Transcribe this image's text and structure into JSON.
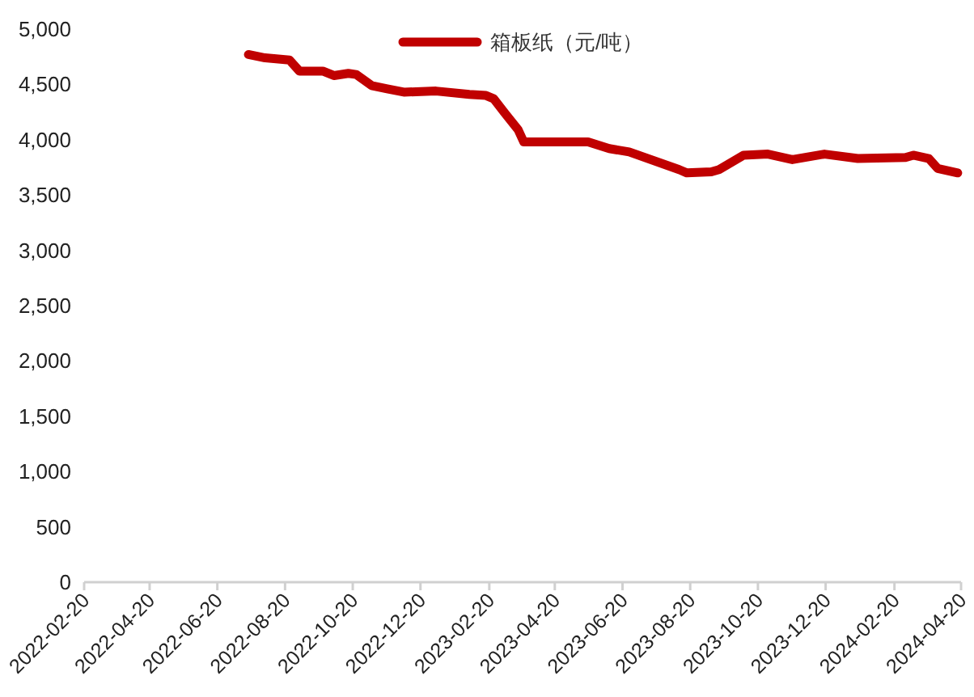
{
  "chart_data": {
    "type": "line",
    "legend": "top",
    "x": [
      "2022-07-18",
      "2022-08-02",
      "2022-08-24",
      "2022-09-02",
      "2022-09-23",
      "2022-10-03",
      "2022-10-16",
      "2022-10-23",
      "2022-11-06",
      "2022-11-20",
      "2022-12-05",
      "2023-01-03",
      "2023-02-02",
      "2023-02-17",
      "2023-02-24",
      "2023-03-06",
      "2023-03-18",
      "2023-03-23",
      "2023-04-14",
      "2023-05-20",
      "2023-06-08",
      "2023-06-26",
      "2023-08-10",
      "2023-08-17",
      "2023-09-08",
      "2023-09-15",
      "2023-10-07",
      "2023-10-29",
      "2023-11-20",
      "2023-12-19",
      "2024-01-18",
      "2024-03-01",
      "2024-03-08",
      "2024-03-22",
      "2024-03-30",
      "2024-04-17"
    ],
    "series": [
      {
        "name": "箱板纸（元/吨）",
        "color": "#c00000",
        "values": [
          4770,
          4740,
          4720,
          4620,
          4620,
          4580,
          4600,
          4590,
          4490,
          4460,
          4430,
          4440,
          4410,
          4400,
          4370,
          4240,
          4090,
          3980,
          3980,
          3980,
          3920,
          3890,
          3730,
          3700,
          3710,
          3730,
          3860,
          3870,
          3820,
          3870,
          3830,
          3840,
          3860,
          3830,
          3740,
          3700
        ]
      }
    ],
    "xlim": [
      "2022-02-20",
      "2024-04-20"
    ],
    "xticks": [
      "2022-02-20",
      "2022-04-20",
      "2022-06-20",
      "2022-08-20",
      "2022-10-20",
      "2022-12-20",
      "2023-02-20",
      "2023-04-20",
      "2023-06-20",
      "2023-08-20",
      "2023-10-20",
      "2023-12-20",
      "2024-02-20",
      "2024-04-20"
    ],
    "ylim": [
      0,
      5000
    ],
    "yticks": [
      {
        "value": 0,
        "label": "0"
      },
      {
        "value": 500,
        "label": "500"
      },
      {
        "value": 1000,
        "label": "1,000"
      },
      {
        "value": 1500,
        "label": "1,500"
      },
      {
        "value": 2000,
        "label": "2,000"
      },
      {
        "value": 2500,
        "label": "2,500"
      },
      {
        "value": 3000,
        "label": "3,000"
      },
      {
        "value": 3500,
        "label": "3,500"
      },
      {
        "value": 4000,
        "label": "4,000"
      },
      {
        "value": 4500,
        "label": "4,500"
      },
      {
        "value": 5000,
        "label": "5,000"
      }
    ]
  }
}
